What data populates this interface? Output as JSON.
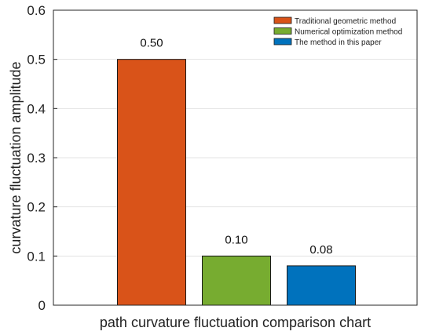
{
  "chart_data": {
    "type": "bar",
    "categories": [
      "Traditional geometric method",
      "Numerical optimization method",
      "The method in this paper"
    ],
    "values": [
      0.5,
      0.1,
      0.08
    ],
    "value_labels": [
      "0.50",
      "0.10",
      "0.08"
    ],
    "colors": [
      "#D95319",
      "#77AC30",
      "#0072BD"
    ],
    "xlabel": "path curvature fluctuation comparison chart",
    "ylabel": "curvature fluctuation amplitude",
    "ylim": [
      0,
      0.6
    ],
    "yticks": [
      "0",
      "0.1",
      "0.2",
      "0.3",
      "0.4",
      "0.5",
      "0.6"
    ],
    "grid": true,
    "legend_position": "top-right"
  }
}
